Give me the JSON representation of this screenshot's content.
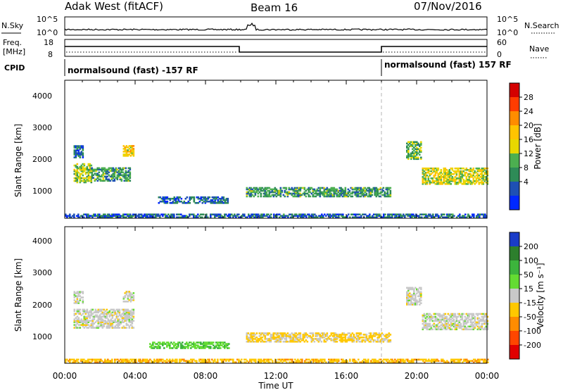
{
  "header": {
    "radar": "Adak West (fitACF)",
    "beam": "Beam 16",
    "date": "07/Nov/2016"
  },
  "top_panels": {
    "nsky_label": "N.Sky",
    "nsky_ticks": [
      "10^5",
      "10^0"
    ],
    "nsearch_label": "N.Search",
    "nsearch_ticks": [
      "10^5",
      "10^0"
    ],
    "freq_label_1": "Freq.",
    "freq_label_2": "[MHz]",
    "freq_ticks": [
      "18",
      "8"
    ],
    "nave_label": "Nave",
    "nave_ticks": [
      "60",
      "0"
    ],
    "cpid_label": "CPID",
    "cpid_left": "normalsound (fast) -157 RF",
    "cpid_right": "normalsound (fast) 157 RF"
  },
  "axes": {
    "ylabel": "Slant Range [km]",
    "yticks": [
      "4000",
      "3000",
      "2000",
      "1000"
    ],
    "xlabel": "Time UT",
    "xticks": [
      "00:00",
      "04:00",
      "08:00",
      "12:00",
      "16:00",
      "20:00",
      "00:00"
    ]
  },
  "colorbars": {
    "power_title": "Power [dB]",
    "power_ticks": [
      "28",
      "24",
      "20",
      "16",
      "12",
      "8",
      "4"
    ],
    "power_colors": [
      "#d40000",
      "#ff3c00",
      "#ff8c00",
      "#ffc400",
      "#e8d800",
      "#4caf50",
      "#2e8b57",
      "#1e50b4",
      "#0028ff"
    ],
    "velocity_title": "Velocity [m s⁻¹]",
    "velocity_ticks": [
      "200",
      "100",
      "50",
      "15",
      "-15",
      "-50",
      "-100",
      "-200"
    ],
    "velocity_colors": [
      "#1a3cc8",
      "#2d7f2d",
      "#3cb43c",
      "#64dc32",
      "#c8c8c8",
      "#ffc800",
      "#ff8c00",
      "#ff4600",
      "#e10000"
    ]
  },
  "chart_data": [
    {
      "type": "heatmap",
      "title": "Power [dB]",
      "xlabel": "Time UT",
      "ylabel": "Slant Range [km]",
      "xlim": [
        0,
        24
      ],
      "ylim": [
        180,
        4600
      ],
      "vlim": [
        0,
        32
      ],
      "echo_regions": [
        {
          "t": [
            0.5,
            1.5
          ],
          "range": [
            1300,
            1900
          ],
          "value": 14
        },
        {
          "t": [
            1.5,
            3.7
          ],
          "range": [
            1350,
            1800
          ],
          "value": 10
        },
        {
          "t": [
            0.5,
            1.0
          ],
          "range": [
            2100,
            2500
          ],
          "value": 7
        },
        {
          "t": [
            3.3,
            3.9
          ],
          "range": [
            2150,
            2500
          ],
          "value": 18
        },
        {
          "t": [
            5.3,
            9.3
          ],
          "range": [
            640,
            860
          ],
          "value": 6
        },
        {
          "t": [
            10.3,
            18.5
          ],
          "range": [
            850,
            1150
          ],
          "value": 10
        },
        {
          "t": [
            19.4,
            20.2
          ],
          "range": [
            2050,
            2600
          ],
          "value": 12
        },
        {
          "t": [
            20.3,
            24.0
          ],
          "range": [
            1250,
            1750
          ],
          "value": 16
        },
        {
          "t": [
            0.0,
            24.0
          ],
          "range": [
            180,
            300
          ],
          "value": 6
        }
      ]
    },
    {
      "type": "heatmap",
      "title": "Velocity [m s⁻¹]",
      "xlabel": "Time UT",
      "ylabel": "Slant Range [km]",
      "xlim": [
        0,
        24
      ],
      "ylim": [
        180,
        4600
      ],
      "vlim": [
        -250,
        250
      ],
      "echo_regions": [
        {
          "t": [
            0.5,
            3.9
          ],
          "range": [
            1300,
            1900
          ],
          "value": 0
        },
        {
          "t": [
            0.5,
            1.0
          ],
          "range": [
            2100,
            2500
          ],
          "value": 0
        },
        {
          "t": [
            3.3,
            3.9
          ],
          "range": [
            2150,
            2500
          ],
          "value": 0
        },
        {
          "t": [
            4.8,
            9.3
          ],
          "range": [
            640,
            860
          ],
          "value": 45
        },
        {
          "t": [
            10.3,
            18.5
          ],
          "range": [
            850,
            1150
          ],
          "value": -20
        },
        {
          "t": [
            19.4,
            20.2
          ],
          "range": [
            2050,
            2600
          ],
          "value": 0
        },
        {
          "t": [
            20.3,
            24.0
          ],
          "range": [
            1250,
            1750
          ],
          "value": 0
        },
        {
          "t": [
            0.0,
            24.0
          ],
          "range": [
            180,
            300
          ],
          "value": -40
        }
      ]
    }
  ]
}
